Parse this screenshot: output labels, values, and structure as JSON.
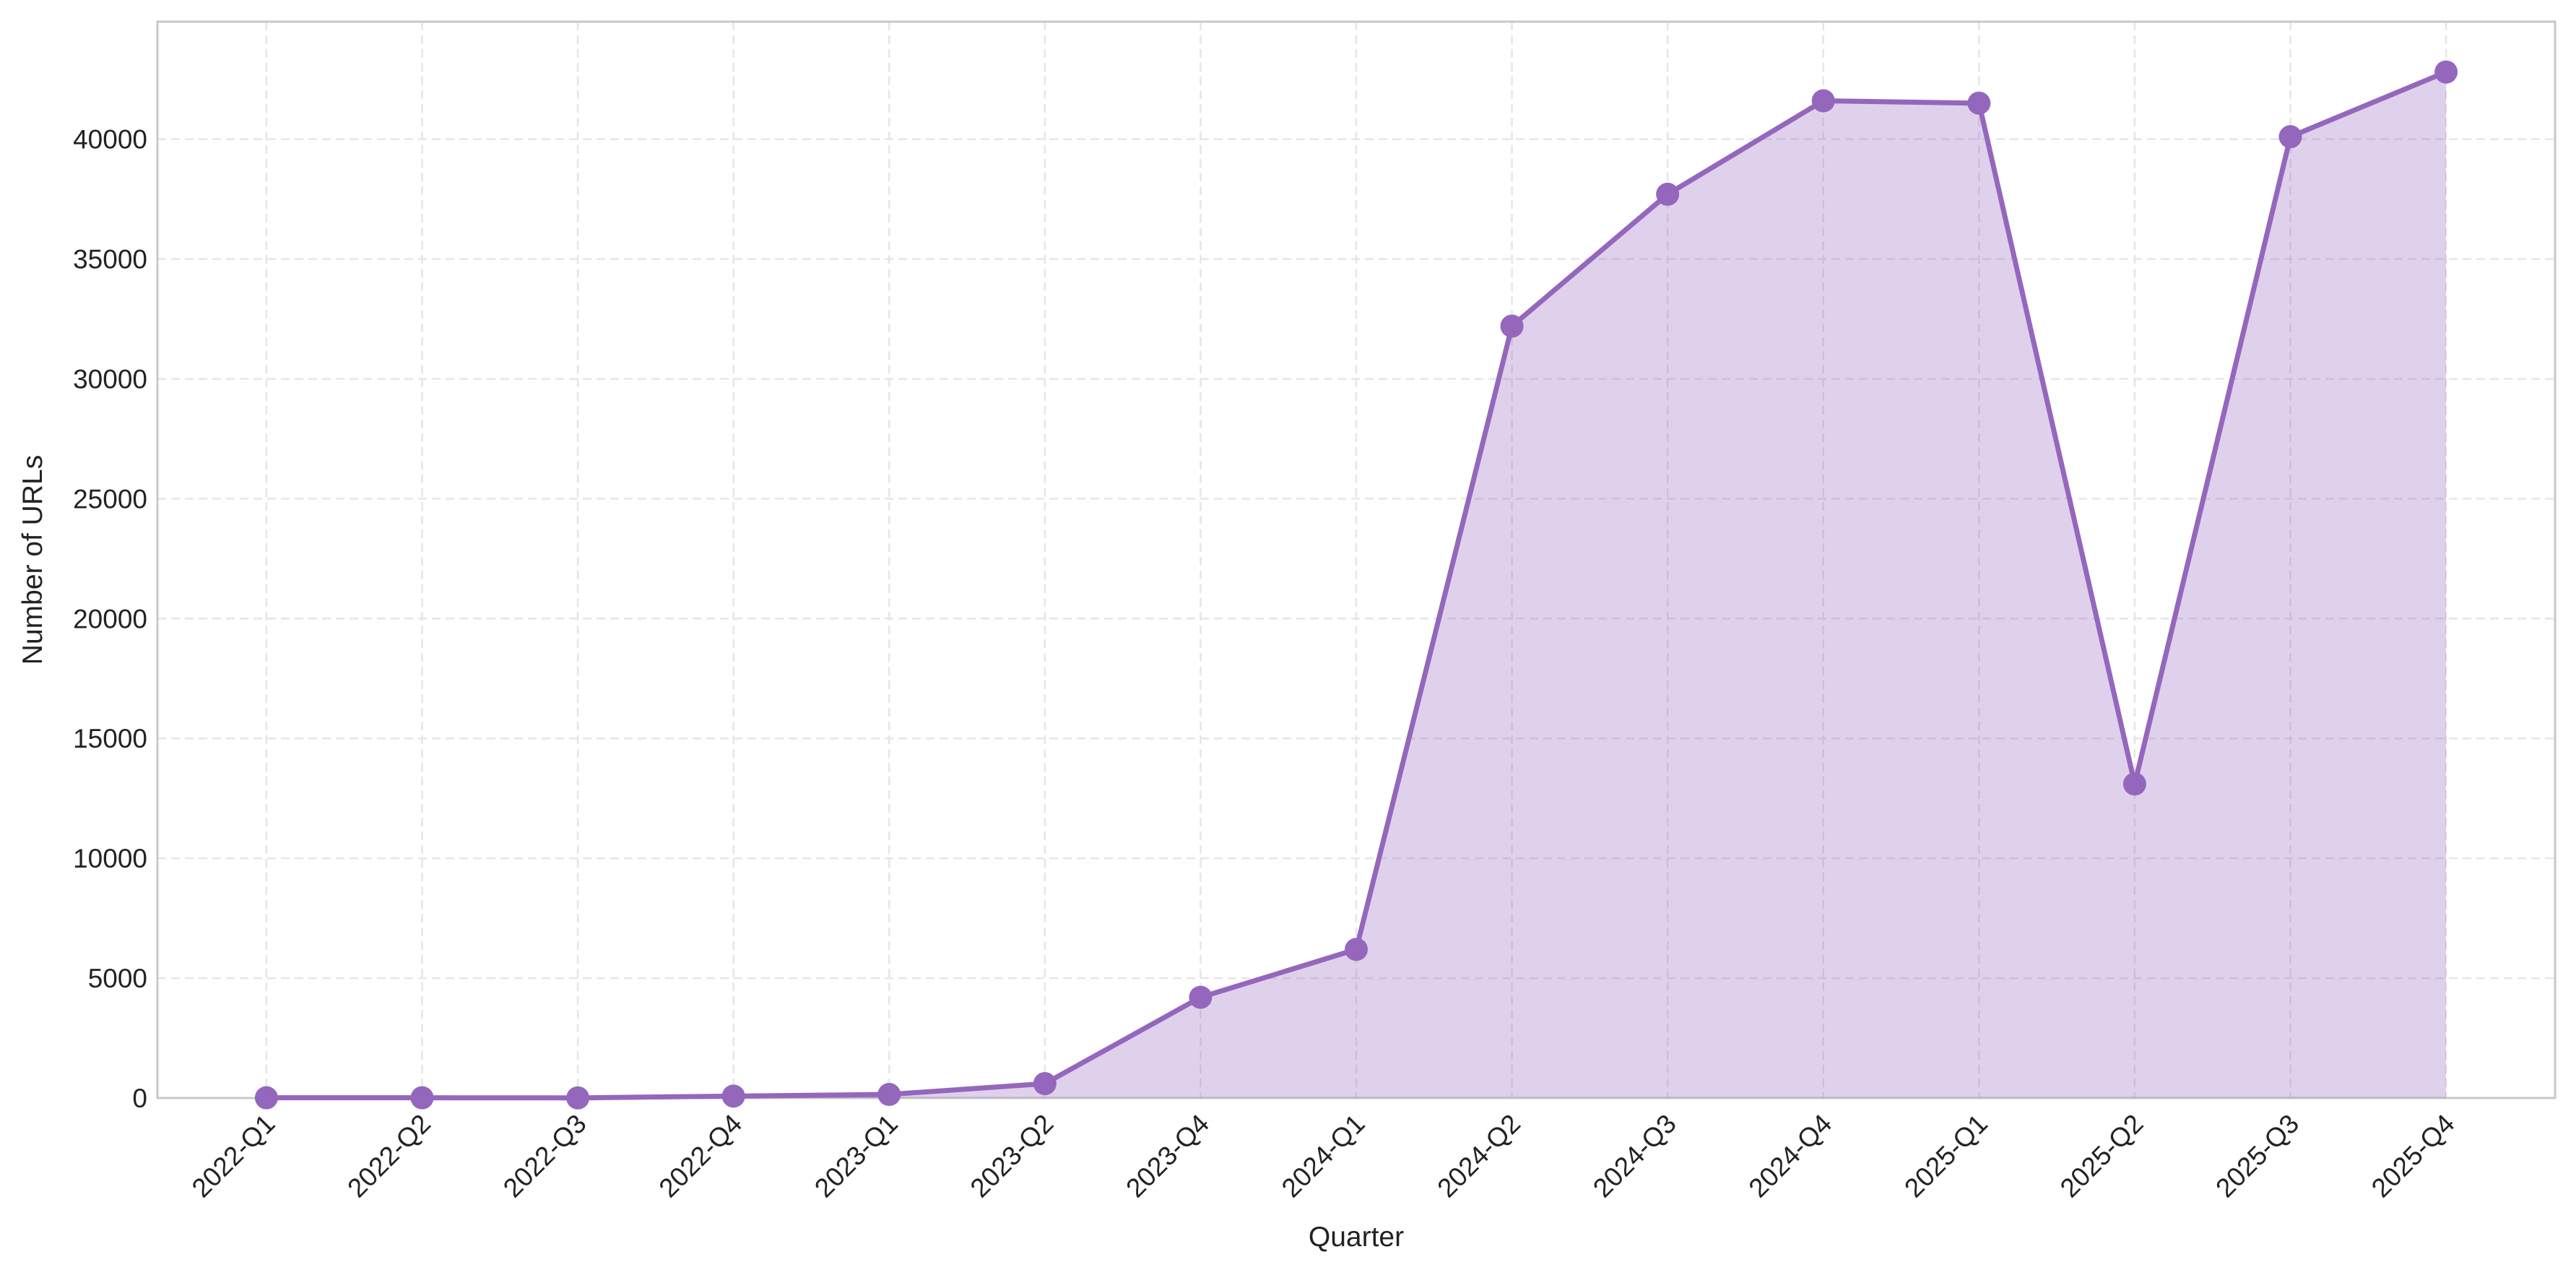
{
  "chart_data": {
    "type": "area",
    "x_label": "Quarter",
    "y_label": "Number of URLs",
    "categories": [
      "2022-Q1",
      "2022-Q2",
      "2022-Q3",
      "2022-Q4",
      "2023-Q1",
      "2023-Q2",
      "2023-Q4",
      "2024-Q1",
      "2024-Q2",
      "2024-Q3",
      "2024-Q4",
      "2025-Q1",
      "2025-Q2",
      "2025-Q3",
      "2025-Q4"
    ],
    "series": [
      {
        "name": "URLs",
        "color": "#9467bd",
        "values": [
          10,
          10,
          5,
          80,
          150,
          600,
          4200,
          6200,
          32200,
          37700,
          41600,
          41500,
          13100,
          40100,
          42800
        ]
      }
    ],
    "ylim": [
      0,
      44900
    ],
    "yticks": [
      0,
      5000,
      10000,
      15000,
      20000,
      25000,
      30000,
      35000,
      40000
    ],
    "grid": true
  }
}
